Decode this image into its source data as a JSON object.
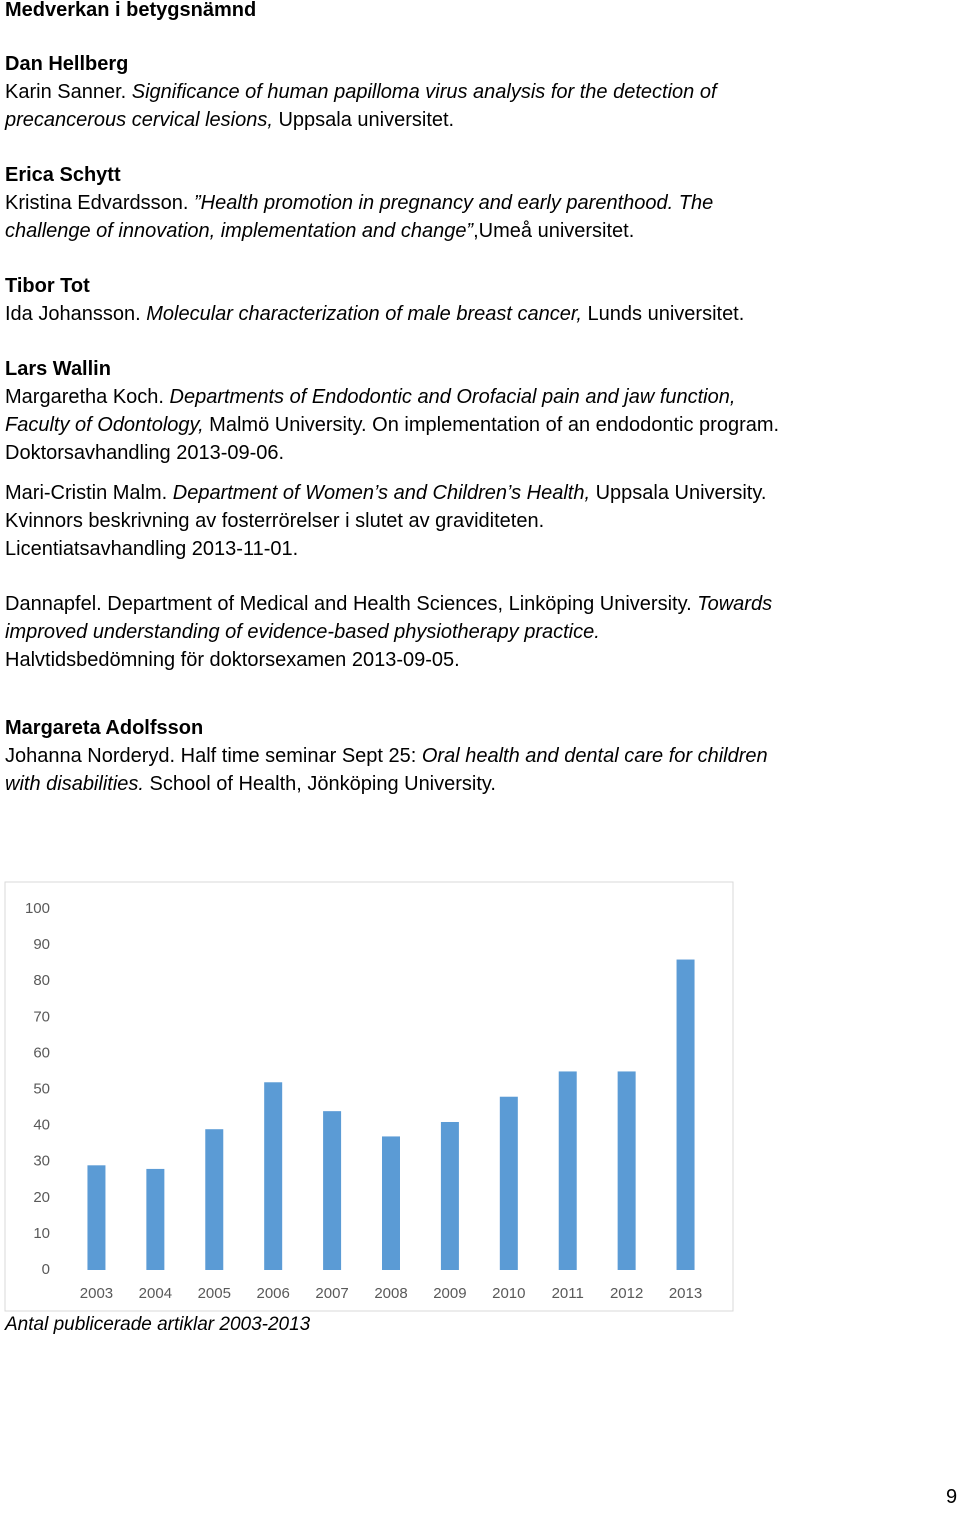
{
  "blocks": [
    {
      "lines": [
        [
          {
            "text": "Medverkan i betygsnämnd",
            "style": "bold"
          }
        ]
      ]
    },
    {
      "lines": [
        [
          {
            "text": "Dan Hellberg",
            "style": "bold"
          }
        ],
        [
          "Karin Sanner. ",
          {
            "text": "Significance of human papilloma virus analysis for the detection of",
            "style": "italic"
          }
        ],
        [
          {
            "text": "precancerous cervical lesions,",
            "style": "italic"
          },
          " Uppsala universitet."
        ]
      ]
    },
    {
      "lines": [
        [
          {
            "text": "Erica Schytt",
            "style": "bold"
          }
        ],
        [
          "Kristina Edvardsson. ",
          {
            "text": "”Health promotion in pregnancy and early parenthood. The",
            "style": "italic"
          }
        ],
        [
          {
            "text": "challenge of innovation, implementation and change”",
            "style": "italic"
          },
          ",Umeå universitet."
        ]
      ]
    },
    {
      "lines": [
        [
          {
            "text": "Tibor Tot",
            "style": "bold"
          }
        ],
        [
          "Ida Johansson. ",
          {
            "text": "Molecular characterization of male breast cancer,",
            "style": "italic"
          },
          " Lunds universitet."
        ]
      ]
    },
    {
      "lines": [
        [
          {
            "text": "Lars Wallin",
            "style": "bold"
          }
        ],
        [
          "Margaretha Koch. ",
          {
            "text": "Departments of Endodontic and Orofacial pain and jaw function,",
            "style": "italic"
          }
        ],
        [
          {
            "text": "Faculty of Odontology,",
            "style": "italic"
          },
          " Malmö University. On implementation of an endodontic program."
        ],
        [
          "Doktorsavhandling 2013-09-06."
        ]
      ]
    },
    {
      "lines": [
        [
          "Mari-Cristin Malm. ",
          {
            "text": "Department of Women’s and Children’s Health,",
            "style": "italic"
          },
          " Uppsala University."
        ],
        [
          "Kvinnors beskrivning av fosterrörelser i slutet av graviditeten."
        ],
        [
          "Licentiatsavhandling 2013-11-01."
        ]
      ]
    },
    {
      "lines": [
        [
          "Dannapfel. Department of Medical and Health Sciences, Linköping University. ",
          {
            "text": "Towards",
            "style": "italic"
          }
        ],
        [
          {
            "text": "improved understanding of evidence-based physiotherapy practice.",
            "style": "italic"
          }
        ],
        [
          "Halvtidsbedömning för doktorsexamen 2013-09-05."
        ]
      ]
    },
    {
      "lines": [
        [
          {
            "text": "Margareta Adolfsson",
            "style": "bold"
          }
        ],
        [
          "Johanna Norderyd. Half time seminar Sept 25: ",
          {
            "text": "Oral health and dental care for children",
            "style": "italic"
          }
        ],
        [
          {
            "text": "with disabilities.",
            "style": "italic"
          },
          " School of Health, Jönköping University."
        ]
      ]
    }
  ],
  "chart_data": {
    "type": "bar",
    "categories": [
      "2003",
      "2004",
      "2005",
      "2006",
      "2007",
      "2008",
      "2009",
      "2010",
      "2011",
      "2012",
      "2013"
    ],
    "values": [
      29,
      28,
      39,
      52,
      44,
      37,
      41,
      48,
      55,
      55,
      86
    ],
    "color": "#5b9bd5",
    "ylim": [
      0,
      100
    ],
    "yticks": [
      0,
      10,
      20,
      30,
      40,
      50,
      60,
      70,
      80,
      90,
      100
    ],
    "grid": false
  },
  "caption": "Antal publicerade artiklar 2003-2013",
  "page_number": "9"
}
